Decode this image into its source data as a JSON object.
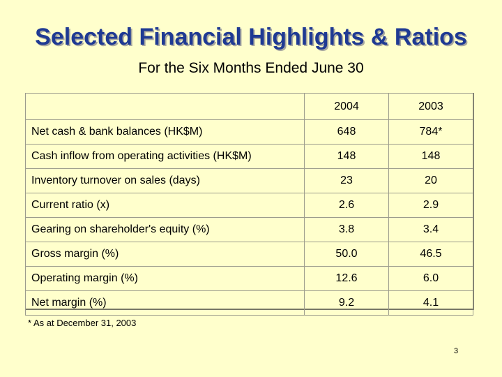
{
  "slide": {
    "title": "Selected Financial Highlights & Ratios",
    "subtitle": "For the Six Months Ended June 30",
    "footnote": "* As at December 31, 2003",
    "page_number": "3",
    "colors": {
      "background": "#ffffcc",
      "title": "#1f3a93"
    }
  },
  "table": {
    "columns": [
      "",
      "2004",
      "2003"
    ],
    "rows": [
      {
        "label": "Net cash & bank balances (HK$M)",
        "v2004": "648",
        "v2003": "784*"
      },
      {
        "label": "Cash inflow from operating activities (HK$M)",
        "v2004": "148",
        "v2003": "148"
      },
      {
        "label": "Inventory turnover on sales (days)",
        "v2004": "23",
        "v2003": "20"
      },
      {
        "label": "Current ratio (x)",
        "v2004": "2.6",
        "v2003": "2.9"
      },
      {
        "label": "Gearing on shareholder's equity (%)",
        "v2004": "3.8",
        "v2003": "3.4"
      },
      {
        "label": "Gross margin (%)",
        "v2004": "50.0",
        "v2003": "46.5"
      },
      {
        "label": "Operating margin (%)",
        "v2004": "12.6",
        "v2003": "6.0"
      },
      {
        "label": "Net margin (%)",
        "v2004": "9.2",
        "v2003": "4.1"
      }
    ]
  }
}
